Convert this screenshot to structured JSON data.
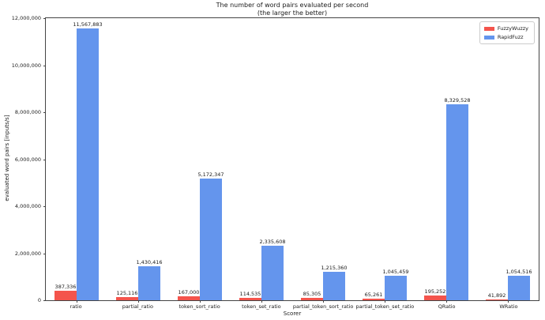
{
  "figure": {
    "title": "The number of word pairs evaluated per second",
    "subtitle": "(the larger the better)"
  },
  "chart_data": {
    "type": "bar",
    "title": "The number of word pairs evaluated per second",
    "subtitle": "(the larger the better)",
    "xlabel": "Scorer",
    "ylabel": "evaluated word pairs [inputs/s]",
    "categories": [
      "ratio",
      "partial_ratio",
      "token_sort_ratio",
      "token_set_ratio",
      "partial_token_sort_ratio",
      "partial_token_set_ratio",
      "QRatio",
      "WRatio"
    ],
    "series": [
      {
        "name": "FuzzyWuzzy",
        "color": "#f4544c",
        "values": [
          387336,
          125116,
          167000,
          114535,
          85305,
          65261,
          195252,
          41892
        ],
        "labels": [
          "387,336",
          "125,116",
          "167,000",
          "114,535",
          "85,305",
          "65,261",
          "195,252",
          "41,892"
        ]
      },
      {
        "name": "RapidFuzz",
        "color": "#6495ed",
        "values": [
          11567883,
          1430416,
          5172347,
          2335608,
          1215360,
          1045459,
          8329528,
          1054516
        ],
        "labels": [
          "11,567,883",
          "1,430,416",
          "5,172,347",
          "2,335,608",
          "1,215,360",
          "1,045,459",
          "8,329,528",
          "1,054,516"
        ]
      }
    ],
    "ylim": [
      0,
      12000000
    ],
    "yticks": {
      "values": [
        0,
        2000000,
        4000000,
        6000000,
        8000000,
        10000000,
        12000000
      ],
      "labels": [
        "0",
        "2,000,000",
        "4,000,000",
        "6,000,000",
        "8,000,000",
        "10,000,000",
        "12,000,000"
      ]
    },
    "grid": false,
    "legend_position": "upper right"
  }
}
